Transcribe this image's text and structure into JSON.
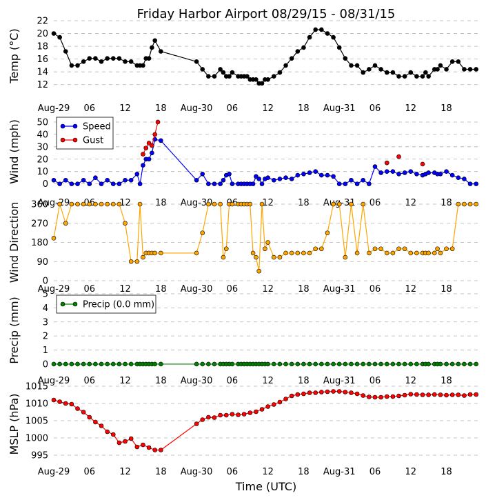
{
  "title": "Friday Harbor Airport 08/29/15 - 08/31/15",
  "xlabel": "Time (UTC)",
  "x_ticks": [
    "Aug-29",
    "06",
    "12",
    "18",
    "Aug-30",
    "06",
    "12",
    "18",
    "Aug-31",
    "06",
    "12",
    "18"
  ],
  "x_range_hours": [
    0,
    71.5
  ],
  "colors": {
    "temp": "#000000",
    "speed": "#0000ff",
    "gust": "#ff0000",
    "direction": "#ffa500",
    "precip": "#008000",
    "mslp": "#ff0000",
    "grid": "#b0b0b0"
  },
  "chart_data": [
    {
      "type": "line",
      "name": "temperature",
      "ylabel": "Temp (°C)",
      "ylim": [
        11,
        22
      ],
      "yticks": [
        12,
        14,
        16,
        18,
        20,
        22
      ],
      "grid": true,
      "series": [
        {
          "x": [
            0,
            1,
            2,
            3,
            4,
            5,
            6,
            7,
            8,
            9,
            10,
            11,
            12,
            13,
            14,
            14.5,
            15,
            15.5,
            16,
            16.5,
            17,
            18,
            24,
            25,
            26,
            27,
            28,
            28.5,
            29,
            29.5,
            30,
            31,
            31.5,
            32,
            32.5,
            33,
            33.5,
            34,
            34.5,
            35,
            35.5,
            36,
            37,
            38,
            39,
            40,
            41,
            42,
            43,
            44,
            45,
            46,
            47,
            48,
            49,
            50,
            51,
            52,
            53,
            54,
            55,
            56,
            57,
            58,
            59,
            60,
            61,
            62,
            62.5,
            63,
            64,
            64.5,
            65,
            66,
            67,
            68,
            69,
            70,
            71
          ],
          "y": [
            20,
            19.4,
            17.2,
            15,
            15,
            15.6,
            16.1,
            16.1,
            15.6,
            16.1,
            16.1,
            16.1,
            15.6,
            15.6,
            15,
            15,
            15,
            16.1,
            16.1,
            17.8,
            18.9,
            17.2,
            15.6,
            14.4,
            13.3,
            13.3,
            14.4,
            13.9,
            13.3,
            13.3,
            13.9,
            13.3,
            13.3,
            13.3,
            13.3,
            12.8,
            12.8,
            12.8,
            12.2,
            12.2,
            12.8,
            12.8,
            13.3,
            13.9,
            15,
            16.1,
            17.2,
            17.8,
            19.4,
            20.6,
            20.6,
            20,
            19.4,
            17.8,
            16.1,
            15,
            15,
            13.9,
            14.4,
            15,
            14.4,
            13.9,
            13.9,
            13.3,
            13.3,
            13.9,
            13.3,
            13.3,
            13.9,
            13.3,
            14.4,
            14.4,
            15,
            14.4,
            15.6,
            15.6,
            14.4,
            14.4,
            14.4
          ]
        }
      ]
    },
    {
      "type": "line",
      "name": "wind",
      "ylabel": "Wind (mph)",
      "ylim": [
        -3,
        55
      ],
      "yticks": [
        0,
        10,
        20,
        30,
        40,
        50
      ],
      "grid": true,
      "legend": "top-left",
      "series": [
        {
          "name": "Speed",
          "x": [
            0,
            1,
            2,
            3,
            4,
            5,
            6,
            7,
            8,
            9,
            10,
            11,
            12,
            13,
            14,
            14.5,
            15,
            15.5,
            16,
            16.5,
            17,
            18,
            24,
            25,
            26,
            27,
            28,
            28.5,
            29,
            29.5,
            30,
            31,
            31.5,
            32,
            32.5,
            33,
            33.5,
            34,
            34.5,
            35,
            35.5,
            36,
            37,
            38,
            39,
            40,
            41,
            42,
            43,
            44,
            45,
            46,
            47,
            48,
            49,
            50,
            51,
            52,
            53,
            54,
            55,
            56,
            57,
            58,
            59,
            60,
            61,
            62,
            62.5,
            63,
            64,
            64.5,
            65,
            66,
            67,
            68,
            69,
            70,
            71
          ],
          "y": [
            3,
            0,
            3,
            0,
            0,
            3,
            0,
            5,
            0,
            3,
            0,
            0,
            3,
            3,
            8,
            0,
            15,
            20,
            20,
            25,
            36,
            35,
            3,
            8,
            0,
            0,
            0,
            3,
            7,
            8,
            0,
            0,
            0,
            0,
            0,
            0,
            0,
            6,
            4,
            0,
            4,
            5,
            3,
            4,
            5,
            4,
            7,
            8,
            9,
            10,
            7,
            7,
            6,
            0,
            0,
            3,
            0,
            3,
            0,
            14,
            9,
            10,
            10,
            8,
            9,
            10,
            8,
            7,
            8,
            9,
            9,
            8,
            8,
            10,
            7,
            5,
            4,
            0,
            0
          ]
        },
        {
          "name": "Gust",
          "x": [
            15,
            15.5,
            16,
            16.5,
            17,
            17.5,
            56,
            58,
            62
          ],
          "y": [
            24,
            29,
            33,
            31,
            40,
            50,
            17,
            22,
            16
          ]
        }
      ]
    },
    {
      "type": "line",
      "name": "direction",
      "ylabel": "Wind Direction",
      "ylim": [
        0,
        360
      ],
      "yticks": [
        0,
        90,
        180,
        270,
        360
      ],
      "grid": true,
      "series": [
        {
          "x": [
            0,
            1,
            2,
            3,
            4,
            5,
            6,
            7,
            8,
            9,
            10,
            11,
            12,
            13,
            14,
            14.5,
            15,
            15.5,
            16,
            16.5,
            17,
            18,
            24,
            25,
            26,
            27,
            28,
            28.5,
            29,
            29.5,
            30,
            31,
            31.5,
            32,
            32.5,
            33,
            33.5,
            34,
            34.5,
            35,
            35.5,
            36,
            37,
            38,
            39,
            40,
            41,
            42,
            43,
            44,
            45,
            46,
            47,
            48,
            49,
            50,
            51,
            52,
            53,
            54,
            55,
            56,
            57,
            58,
            59,
            60,
            61,
            62,
            62.5,
            63,
            64,
            64.5,
            65,
            66,
            67,
            68,
            69,
            70,
            71
          ],
          "y": [
            200,
            360,
            270,
            360,
            360,
            360,
            360,
            360,
            360,
            360,
            360,
            360,
            270,
            90,
            90,
            360,
            110,
            130,
            130,
            130,
            130,
            130,
            130,
            225,
            360,
            360,
            360,
            110,
            150,
            360,
            360,
            360,
            360,
            360,
            360,
            360,
            130,
            110,
            45,
            360,
            150,
            180,
            110,
            110,
            130,
            130,
            130,
            130,
            130,
            150,
            150,
            225,
            360,
            360,
            110,
            360,
            130,
            360,
            130,
            150,
            150,
            130,
            130,
            150,
            150,
            130,
            130,
            130,
            130,
            130,
            130,
            150,
            130,
            150,
            150,
            360,
            360,
            360,
            360
          ]
        }
      ]
    },
    {
      "type": "line",
      "name": "precip",
      "ylabel": "Precip (mm)",
      "ylim": [
        -0.2,
        5
      ],
      "yticks": [
        0,
        1,
        2,
        3,
        4,
        5
      ],
      "grid": true,
      "legend": "top-left",
      "series": [
        {
          "name": "Precip (0.0 mm)",
          "x": [
            0,
            1,
            2,
            3,
            4,
            5,
            6,
            7,
            8,
            9,
            10,
            11,
            12,
            13,
            14,
            14.5,
            15,
            15.5,
            16,
            16.5,
            17,
            18,
            24,
            25,
            26,
            27,
            28,
            28.5,
            29,
            29.5,
            30,
            31,
            31.5,
            32,
            32.5,
            33,
            33.5,
            34,
            34.5,
            35,
            35.5,
            36,
            37,
            38,
            39,
            40,
            41,
            42,
            43,
            44,
            45,
            46,
            47,
            48,
            49,
            50,
            51,
            52,
            53,
            54,
            55,
            56,
            57,
            58,
            59,
            60,
            61,
            62,
            62.5,
            63,
            64,
            64.5,
            65,
            66,
            67,
            68,
            69,
            70,
            71
          ],
          "y": [
            0,
            0,
            0,
            0,
            0,
            0,
            0,
            0,
            0,
            0,
            0,
            0,
            0,
            0,
            0,
            0,
            0,
            0,
            0,
            0,
            0,
            0,
            0,
            0,
            0,
            0,
            0,
            0,
            0,
            0,
            0,
            0,
            0,
            0,
            0,
            0,
            0,
            0,
            0,
            0,
            0,
            0,
            0,
            0,
            0,
            0,
            0,
            0,
            0,
            0,
            0,
            0,
            0,
            0,
            0,
            0,
            0,
            0,
            0,
            0,
            0,
            0,
            0,
            0,
            0,
            0,
            0,
            0,
            0,
            0,
            0,
            0,
            0,
            0,
            0,
            0,
            0,
            0,
            0
          ]
        }
      ]
    },
    {
      "type": "line",
      "name": "mslp",
      "ylabel": "MSLP (hPa)",
      "ylim": [
        993,
        1015
      ],
      "yticks": [
        995,
        1000,
        1005,
        1010,
        1015
      ],
      "grid": true,
      "series": [
        {
          "x": [
            0,
            1,
            2,
            3,
            4,
            5,
            6,
            7,
            8,
            9,
            10,
            11,
            12,
            13,
            14,
            15,
            16,
            17,
            18,
            24,
            25,
            26,
            27,
            28,
            29,
            30,
            31,
            32,
            33,
            34,
            35,
            36,
            37,
            38,
            39,
            40,
            41,
            42,
            43,
            44,
            45,
            46,
            47,
            48,
            49,
            50,
            51,
            52,
            53,
            54,
            55,
            56,
            57,
            58,
            59,
            60,
            61,
            62,
            63,
            64,
            65,
            66,
            67,
            68,
            69,
            70,
            71
          ],
          "y": [
            1011,
            1010.5,
            1010,
            1009.8,
            1008.5,
            1007.5,
            1006,
            1004.6,
            1003.5,
            1001.8,
            1001,
            998.6,
            999,
            999.8,
            997.4,
            998,
            997.2,
            996.5,
            996.5,
            1004.1,
            1005.3,
            1006,
            1005.9,
            1006.6,
            1006.6,
            1006.9,
            1006.7,
            1006.9,
            1007.3,
            1007.6,
            1008.3,
            1009.1,
            1009.7,
            1010.4,
            1011.3,
            1012.2,
            1012.6,
            1012.8,
            1013.1,
            1013.1,
            1013.3,
            1013.4,
            1013.5,
            1013.5,
            1013.3,
            1013.1,
            1012.8,
            1012.3,
            1011.9,
            1011.8,
            1011.8,
            1012,
            1012,
            1012.2,
            1012.4,
            1012.7,
            1012.6,
            1012.5,
            1012.5,
            1012.6,
            1012.5,
            1012.4,
            1012.5,
            1012.5,
            1012.3,
            1012.6,
            1012.6
          ]
        }
      ]
    }
  ]
}
